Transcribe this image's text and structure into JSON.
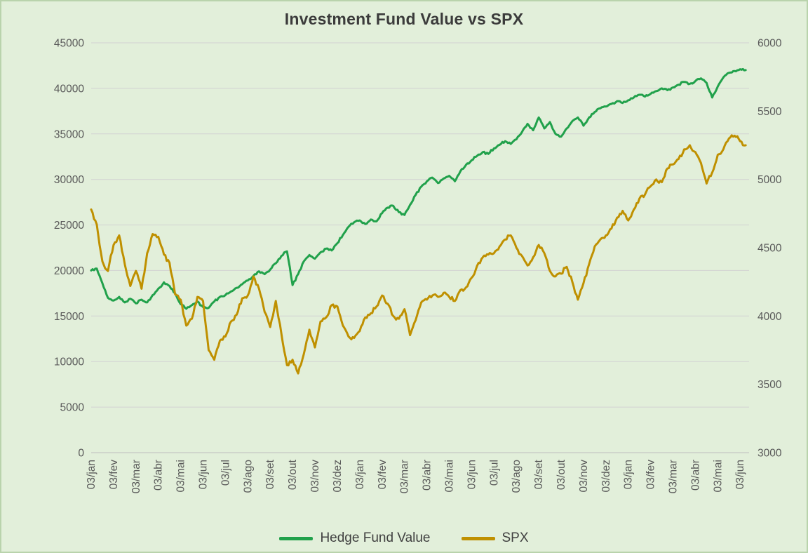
{
  "chart_data": {
    "type": "line",
    "title": "Investment Fund Value vs SPX",
    "legend_position": "bottom",
    "grid": "horizontal",
    "background_color": "#e2efda",
    "x_axis": {
      "labels": [
        "03/jan",
        "03/fev",
        "03/mar",
        "03/abr",
        "03/mai",
        "03/jun",
        "03/jul",
        "03/ago",
        "03/set",
        "03/out",
        "03/nov",
        "03/dez",
        "03/jan",
        "03/fev",
        "03/mar",
        "03/abr",
        "03/mai",
        "03/jun",
        "03/jul",
        "03/ago",
        "03/set",
        "03/out",
        "03/nov",
        "03/dez",
        "03/jan",
        "03/fev",
        "03/mar",
        "03/abr",
        "03/mai",
        "03/jun"
      ],
      "rotation_degrees": -90
    },
    "y_left": {
      "min": 0,
      "max": 45000,
      "step": 5000
    },
    "y_right": {
      "min": 3000,
      "max": 6000,
      "step": 500
    },
    "x_start_months": 0,
    "x_step_months": 0.25,
    "series": [
      {
        "name": "Hedge Fund Value",
        "axis": "left",
        "color": "#21a14b",
        "values": [
          20000,
          20200,
          18600,
          17000,
          16700,
          17100,
          16500,
          16900,
          16400,
          16800,
          16500,
          17300,
          18000,
          18700,
          18300,
          17500,
          16300,
          15800,
          16200,
          16600,
          16000,
          15900,
          16600,
          17100,
          17300,
          17700,
          18100,
          18500,
          18900,
          19400,
          19900,
          19600,
          20100,
          20800,
          21600,
          22100,
          18400,
          19600,
          21000,
          21700,
          21300,
          22000,
          22400,
          22200,
          23000,
          23900,
          24800,
          25300,
          25500,
          25100,
          25600,
          25400,
          26300,
          26900,
          27100,
          26400,
          26100,
          27200,
          28300,
          29200,
          29800,
          30200,
          29600,
          30100,
          30400,
          29800,
          30900,
          31600,
          32100,
          32600,
          33000,
          32800,
          33400,
          33800,
          34200,
          33900,
          34400,
          35200,
          36100,
          35400,
          36800,
          35600,
          36300,
          35000,
          34700,
          35600,
          36400,
          36800,
          35900,
          36800,
          37400,
          37800,
          38000,
          38300,
          38600,
          38400,
          38700,
          39000,
          39300,
          39100,
          39400,
          39700,
          40000,
          39800,
          40100,
          40400,
          40700,
          40500,
          40800,
          41100,
          40600,
          39000,
          40200,
          41200,
          41700,
          41900,
          42100,
          42000
        ]
      },
      {
        "name": "SPX",
        "axis": "right",
        "color": "#bf9000",
        "values": [
          4780,
          4670,
          4400,
          4330,
          4520,
          4590,
          4380,
          4220,
          4330,
          4200,
          4460,
          4600,
          4580,
          4450,
          4390,
          4160,
          4120,
          3930,
          3980,
          4140,
          4110,
          3750,
          3680,
          3820,
          3850,
          3960,
          4010,
          4130,
          4150,
          4290,
          4200,
          4030,
          3920,
          4110,
          3870,
          3640,
          3680,
          3580,
          3720,
          3900,
          3770,
          3960,
          3990,
          4080,
          4070,
          3930,
          3850,
          3840,
          3890,
          3990,
          4020,
          4070,
          4150,
          4090,
          4000,
          3980,
          4050,
          3860,
          3970,
          4100,
          4120,
          4150,
          4140,
          4170,
          4140,
          4110,
          4190,
          4210,
          4280,
          4370,
          4430,
          4450,
          4460,
          4510,
          4560,
          4590,
          4500,
          4440,
          4370,
          4430,
          4520,
          4460,
          4330,
          4290,
          4310,
          4360,
          4250,
          4120,
          4240,
          4380,
          4510,
          4560,
          4590,
          4640,
          4720,
          4770,
          4700,
          4780,
          4860,
          4890,
          4950,
          5000,
          4980,
          5080,
          5110,
          5150,
          5220,
          5250,
          5200,
          5120,
          4970,
          5050,
          5180,
          5220,
          5300,
          5320,
          5280,
          5250
        ]
      }
    ]
  }
}
